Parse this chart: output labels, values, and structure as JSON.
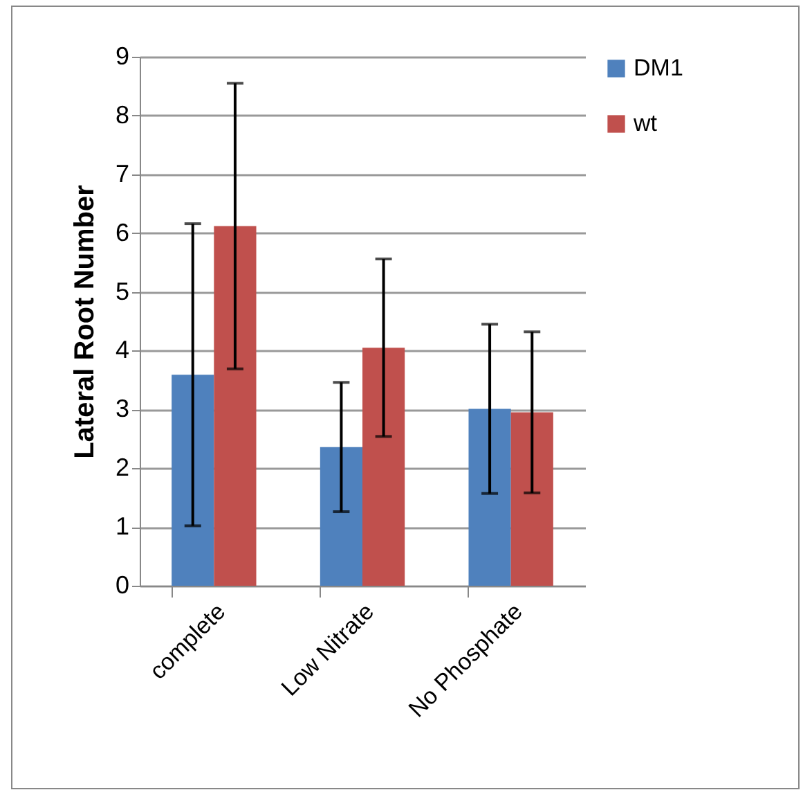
{
  "chart_data": {
    "type": "bar",
    "ylabel": "Lateral Root Number",
    "categories": [
      "complete",
      "Low Nitrate",
      "No Phosphate"
    ],
    "series": [
      {
        "name": "DM1",
        "color": "#4f81bd",
        "values": [
          3.59,
          2.36,
          3.01
        ],
        "errors": [
          2.57,
          1.1,
          1.44
        ]
      },
      {
        "name": "wt",
        "color": "#c0504d",
        "values": [
          6.12,
          4.05,
          2.95
        ],
        "errors": [
          2.43,
          1.51,
          1.37
        ]
      }
    ],
    "ylim": [
      0,
      9
    ],
    "yticks": [
      0,
      1,
      2,
      3,
      4,
      5,
      6,
      7,
      8,
      9
    ],
    "grid": "y",
    "legend": "right"
  }
}
